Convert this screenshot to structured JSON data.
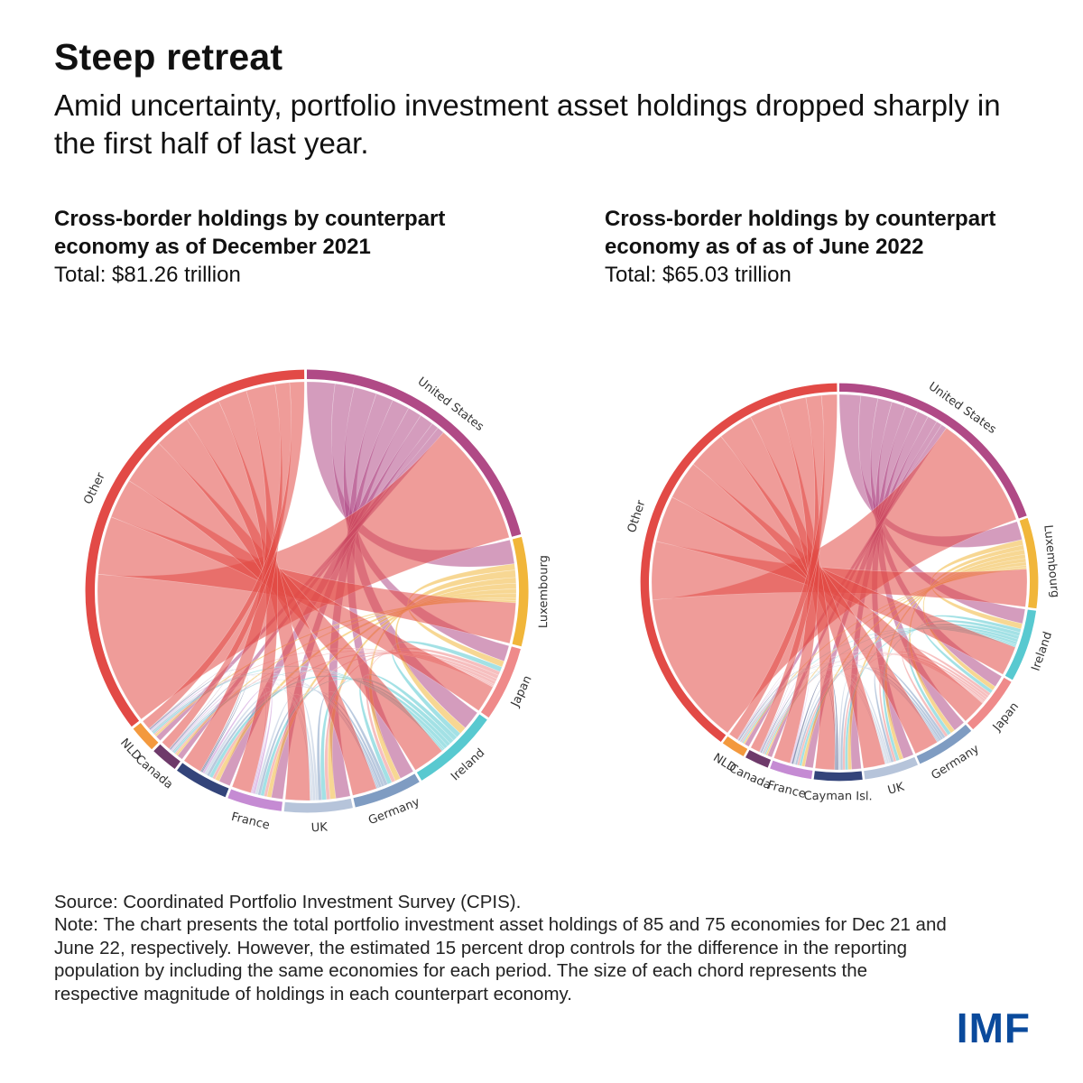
{
  "title": "Steep retreat",
  "subtitle": "Amid uncertainty, portfolio investment asset holdings dropped sharply in the first half of last year.",
  "chart_data": [
    {
      "type": "chord",
      "title": "Cross-border holdings by counterpart economy as of December 2021",
      "total": "Total: $81.26 trillion",
      "segments": [
        {
          "name": "United States",
          "share": 0.21,
          "color": "#b04a86"
        },
        {
          "name": "Luxembourg",
          "share": 0.08,
          "color": "#f1b63a"
        },
        {
          "name": "Japan",
          "share": 0.055,
          "color": "#ef8a8a"
        },
        {
          "name": "Ireland",
          "share": 0.065,
          "color": "#58c9d0"
        },
        {
          "name": "Germany",
          "share": 0.05,
          "color": "#7f9cc2"
        },
        {
          "name": "UK",
          "share": 0.05,
          "color": "#b6c4da"
        },
        {
          "name": "France",
          "share": 0.04,
          "color": "#c58bd3"
        },
        {
          "name": "",
          "share": 0.04,
          "color": "#33447a"
        },
        {
          "name": "Canada",
          "share": 0.02,
          "color": "#6e3a6a"
        },
        {
          "name": "NLD",
          "share": 0.02,
          "color": "#f3993e"
        },
        {
          "name": "Other",
          "share": 0.355,
          "color": "#e24a46"
        }
      ]
    },
    {
      "type": "chord",
      "title": "Cross-border holdings by counterpart economy as of as of June 2022",
      "total": "Total: $65.03 trillion",
      "segments": [
        {
          "name": "United States",
          "share": 0.2,
          "color": "#b04a86"
        },
        {
          "name": "Luxembourg",
          "share": 0.075,
          "color": "#f1b63a"
        },
        {
          "name": "Ireland",
          "share": 0.06,
          "color": "#58c9d0"
        },
        {
          "name": "Japan",
          "share": 0.05,
          "color": "#ef8a8a"
        },
        {
          "name": "Germany",
          "share": 0.05,
          "color": "#7f9cc2"
        },
        {
          "name": "UK",
          "share": 0.045,
          "color": "#b6c4da"
        },
        {
          "name": "Cayman Isl.",
          "share": 0.04,
          "color": "#33447a"
        },
        {
          "name": "France",
          "share": 0.035,
          "color": "#c58bd3"
        },
        {
          "name": "Canada",
          "share": 0.02,
          "color": "#6e3a6a"
        },
        {
          "name": "NLD",
          "share": 0.02,
          "color": "#f3993e"
        },
        {
          "name": "Other",
          "share": 0.405,
          "color": "#e24a46"
        }
      ]
    }
  ],
  "footer": {
    "source": "Source: Coordinated Portfolio Investment Survey (CPIS).",
    "note": "Note: The chart presents the total portfolio investment asset holdings of 85 and 75 economies for Dec 21 and June 22, respectively. However, the estimated 15 percent drop controls for the difference in the reporting population by including the same economies for each period. The size of each chord represents the respective magnitude of holdings in each counterpart economy."
  },
  "logo": "IMF"
}
